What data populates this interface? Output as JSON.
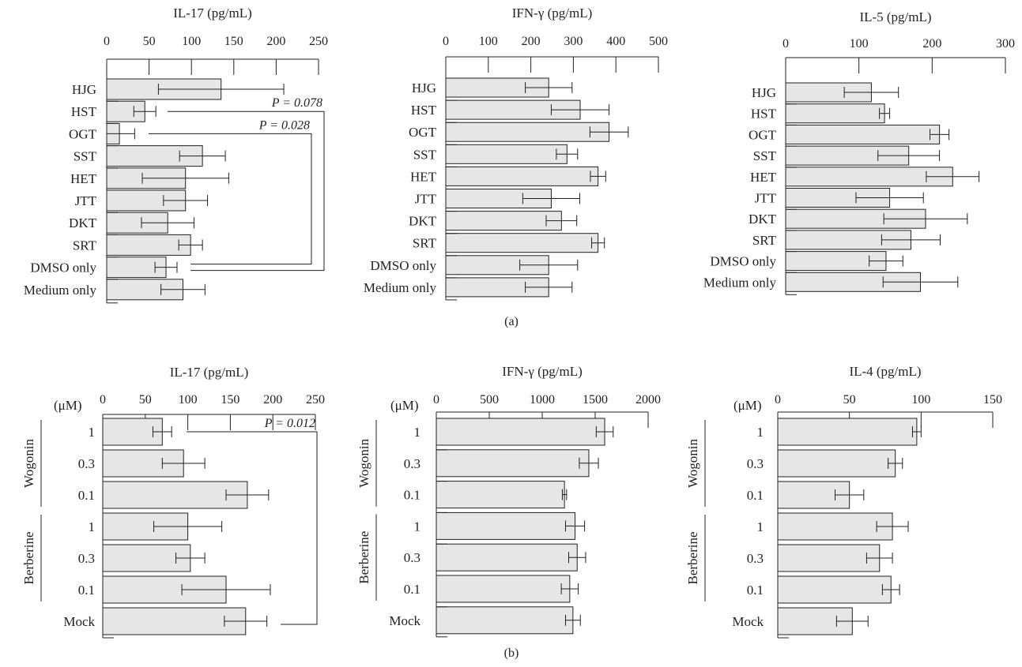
{
  "figure": {
    "panel_a_label": "(a)",
    "panel_b_label": "(b)"
  },
  "chart_data": [
    {
      "type": "bar",
      "orientation": "horizontal",
      "panel": "a",
      "title": "IL-17 (pg/mL)",
      "xlim": [
        0,
        250
      ],
      "ticks": [
        "0",
        "50",
        "100",
        "150",
        "200",
        "250"
      ],
      "categories": [
        "HJG",
        "HST",
        "OGT",
        "SST",
        "HET",
        "JTT",
        "DKT",
        "SRT",
        "DMSO only",
        "Medium only"
      ],
      "values": [
        135,
        45,
        15,
        113,
        93,
        93,
        72,
        99,
        70,
        90
      ],
      "errors": [
        74,
        13,
        18,
        27,
        51,
        26,
        31,
        14,
        13,
        26
      ],
      "annotations": [
        {
          "text": "P = 0.078",
          "from": "HST",
          "to": "DMSO only"
        },
        {
          "text": "P = 0.028",
          "from": "OGT",
          "to": "DMSO only"
        }
      ]
    },
    {
      "type": "bar",
      "orientation": "horizontal",
      "panel": "a",
      "title": "IFN-γ (pg/mL)",
      "xlim": [
        0,
        500
      ],
      "ticks": [
        "0",
        "100",
        "200",
        "300",
        "400",
        "500"
      ],
      "categories": [
        "HJG",
        "HST",
        "OGT",
        "SST",
        "HET",
        "JTT",
        "DKT",
        "SRT",
        "DMSO only",
        "Medium only"
      ],
      "values": [
        242,
        316,
        384,
        285,
        358,
        248,
        272,
        358,
        242,
        242
      ],
      "errors": [
        55,
        68,
        45,
        25,
        18,
        67,
        36,
        15,
        68,
        55
      ],
      "annotations": []
    },
    {
      "type": "bar",
      "orientation": "horizontal",
      "panel": "a",
      "title": "IL-5 (pg/mL)",
      "xlim": [
        0,
        300
      ],
      "ticks": [
        "0",
        "100",
        "200",
        "300"
      ],
      "categories": [
        "HJG",
        "HST",
        "OGT",
        "SST",
        "HET",
        "JTT",
        "DKT",
        "SRT",
        "DMSO only",
        "Medium only"
      ],
      "values": [
        117,
        135,
        210,
        168,
        228,
        142,
        191,
        171,
        137,
        184
      ],
      "errors": [
        37,
        7,
        13,
        42,
        36,
        46,
        57,
        40,
        23,
        51
      ],
      "annotations": []
    },
    {
      "type": "bar",
      "orientation": "horizontal",
      "panel": "b",
      "title": "IL-17 (pg/mL)",
      "xlim": [
        0,
        250
      ],
      "unit_label": "(μM)",
      "ticks": [
        "0",
        "50",
        "100",
        "150",
        "200",
        "250"
      ],
      "groups": [
        {
          "name": "Wogonin",
          "categories": [
            "1",
            "0.3",
            "0.1"
          ]
        },
        {
          "name": "Berberine",
          "categories": [
            "1",
            "0.3",
            "0.1"
          ]
        }
      ],
      "categories": [
        "1",
        "0.3",
        "0.1",
        "1",
        "0.3",
        "0.1",
        "Mock"
      ],
      "values": [
        70,
        95,
        170,
        100,
        103,
        145,
        168
      ],
      "errors": [
        11,
        25,
        25,
        40,
        17,
        52,
        25
      ],
      "annotations": [
        {
          "text": "P = 0.012",
          "from": "1",
          "to": "Mock"
        }
      ]
    },
    {
      "type": "bar",
      "orientation": "horizontal",
      "panel": "b",
      "title": "IFN-γ (pg/mL)",
      "xlim": [
        0,
        2000
      ],
      "unit_label": "(μM)",
      "ticks": [
        "0",
        "500",
        "1000",
        "1500",
        "2000"
      ],
      "groups": [
        {
          "name": "Wogonin",
          "categories": [
            "1",
            "0.3",
            "0.1"
          ]
        },
        {
          "name": "Berberine",
          "categories": [
            "1",
            "0.3",
            "0.1"
          ]
        }
      ],
      "categories": [
        "1",
        "0.3",
        "0.1",
        "1",
        "0.3",
        "0.1",
        "Mock"
      ],
      "values": [
        1590,
        1440,
        1210,
        1310,
        1330,
        1260,
        1290
      ],
      "errors": [
        80,
        90,
        20,
        90,
        80,
        80,
        70
      ],
      "annotations": []
    },
    {
      "type": "bar",
      "orientation": "horizontal",
      "panel": "b",
      "title": "IL-4 (pg/mL)",
      "xlim": [
        0,
        150
      ],
      "unit_label": "(μM)",
      "ticks": [
        "0",
        "50",
        "100",
        "150"
      ],
      "groups": [
        {
          "name": "Wogonin",
          "categories": [
            "1",
            "0.3",
            "0.1"
          ]
        },
        {
          "name": "Berberine",
          "categories": [
            "1",
            "0.3",
            "0.1"
          ]
        }
      ],
      "categories": [
        "1",
        "0.3",
        "0.1",
        "1",
        "0.3",
        "0.1",
        "Mock"
      ],
      "values": [
        97,
        82,
        50,
        80,
        71,
        79,
        52
      ],
      "errors": [
        3,
        5,
        10,
        11,
        9,
        6,
        11
      ],
      "annotations": []
    }
  ]
}
